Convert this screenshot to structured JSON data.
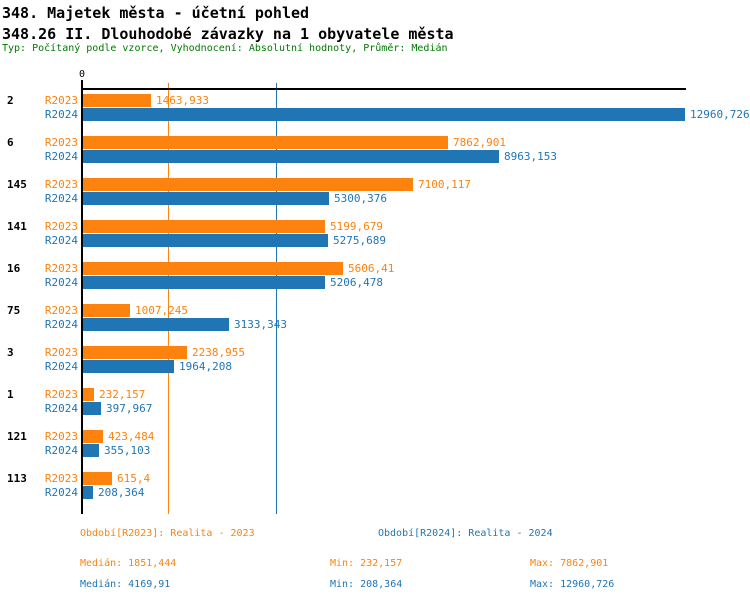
{
  "header": {
    "title": "348. Majetek města - účetní pohled",
    "subtitle": "348.26 II. Dlouhodobé závazky na 1 obyvatele města",
    "meta": "Typ: Počítaný podle vzorce, Vyhodnocení: Absolutní hodnoty, Průměr: Medián"
  },
  "colors": {
    "r2023": "#fd820e",
    "r2024": "#2076b5",
    "meta_text": "#007a00",
    "axis": "#000000"
  },
  "chart_data": {
    "type": "bar",
    "orientation": "horizontal",
    "xlim": [
      0,
      13000
    ],
    "zero_tick_label": "0",
    "grid": "median-lines-only",
    "legend_position": "bottom",
    "series": [
      {
        "key": "r2023",
        "label": "R2023",
        "color": "#fd820e",
        "period": "Realita - 2023",
        "median": 1851.444,
        "min": 232.157,
        "max": 7862.901
      },
      {
        "key": "r2024",
        "label": "R2024",
        "color": "#2076b5",
        "period": "Realita - 2024",
        "median": 4169.91,
        "min": 208.364,
        "max": 12960.726
      }
    ],
    "categories": [
      "2",
      "6",
      "145",
      "141",
      "16",
      "75",
      "3",
      "1",
      "121",
      "113"
    ],
    "groups": [
      {
        "category": "2",
        "r2023": 1463.933,
        "r2024": 12960.726,
        "r2023_label": "1463,933",
        "r2024_label": "12960,726"
      },
      {
        "category": "6",
        "r2023": 7862.901,
        "r2024": 8963.153,
        "r2023_label": "7862,901",
        "r2024_label": "8963,153"
      },
      {
        "category": "145",
        "r2023": 7100.117,
        "r2024": 5300.376,
        "r2023_label": "7100,117",
        "r2024_label": "5300,376"
      },
      {
        "category": "141",
        "r2023": 5199.679,
        "r2024": 5275.689,
        "r2023_label": "5199,679",
        "r2024_label": "5275,689"
      },
      {
        "category": "16",
        "r2023": 5606.41,
        "r2024": 5206.478,
        "r2023_label": "5606,41",
        "r2024_label": "5206,478"
      },
      {
        "category": "75",
        "r2023": 1007.245,
        "r2024": 3133.343,
        "r2023_label": "1007,245",
        "r2024_label": "3133,343"
      },
      {
        "category": "3",
        "r2023": 2238.955,
        "r2024": 1964.208,
        "r2023_label": "2238,955",
        "r2024_label": "1964,208"
      },
      {
        "category": "1",
        "r2023": 232.157,
        "r2024": 397.967,
        "r2023_label": "232,157",
        "r2024_label": "397,967"
      },
      {
        "category": "121",
        "r2023": 423.484,
        "r2024": 355.103,
        "r2023_label": "423,484",
        "r2024_label": "355,103"
      },
      {
        "category": "113",
        "r2023": 615.4,
        "r2024": 208.364,
        "r2023_label": "615,4",
        "r2024_label": "208,364"
      }
    ],
    "median_lines": [
      {
        "series_key": "r2023",
        "value": 1851.444
      },
      {
        "series_key": "r2024",
        "value": 4169.91
      }
    ]
  },
  "footer": {
    "period_r2023": "Období[R2023]: Realita - 2023",
    "period_r2024": "Období[R2024]: Realita - 2024",
    "r2023_median": "Medián: 1851,444",
    "r2023_min": "Min: 232,157",
    "r2023_max": "Max: 7862,901",
    "r2024_median": "Medián: 4169,91",
    "r2024_min": "Min: 208,364",
    "r2024_max": "Max: 12960,726"
  }
}
